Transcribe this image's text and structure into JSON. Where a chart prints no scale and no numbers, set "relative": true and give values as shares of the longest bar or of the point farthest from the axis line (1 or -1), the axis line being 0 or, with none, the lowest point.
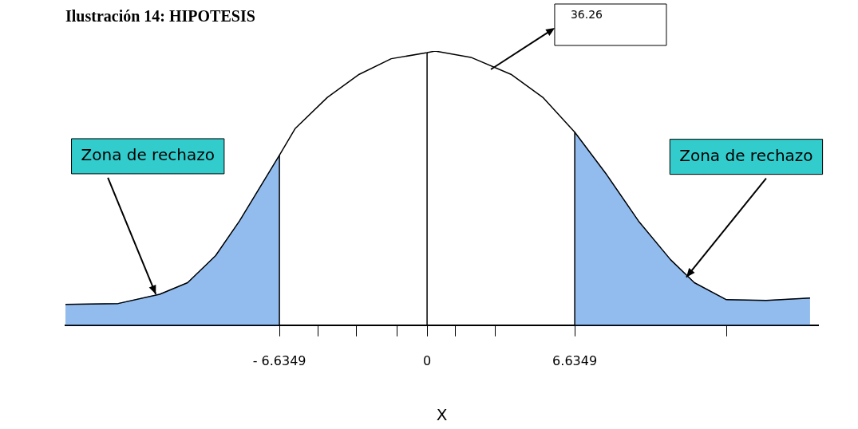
{
  "chart_data": {
    "type": "line",
    "title": "Ilustración 14: HIPOTESIS",
    "xlabel": "X",
    "relative": true,
    "xlim": [
      -16.25,
      17.57
    ],
    "xticks": [
      {
        "value": -6.6349,
        "label": "- 6.6349"
      },
      {
        "value": -4.91,
        "label": null
      },
      {
        "value": -3.19,
        "label": null
      },
      {
        "value": -1.36,
        "label": null
      },
      0,
      {
        "value": 1.26,
        "label": null
      },
      {
        "value": 3.05,
        "label": null
      },
      {
        "value": 6.6349,
        "label": "6.6349"
      },
      {
        "value": 13.45,
        "label": null
      }
    ],
    "series": [
      {
        "color": "#000000",
        "x": [
          -16.25,
          -13.88,
          -12.01,
          -10.76,
          -9.5,
          -8.43,
          -6.6349,
          -5.92,
          -4.48,
          -3.05,
          -1.61,
          0,
          0.36,
          1.97,
          3.77,
          5.2,
          6.6349,
          8.07,
          9.5,
          10.94,
          12.01,
          13.45,
          15.24,
          17.21
        ],
        "values": [
          0.076,
          0.079,
          0.113,
          0.155,
          0.254,
          0.38,
          0.62,
          0.718,
          0.831,
          0.915,
          0.972,
          0.994,
          1,
          0.977,
          0.915,
          0.831,
          0.704,
          0.549,
          0.38,
          0.239,
          0.155,
          0.093,
          0.09,
          0.099
        ]
      },
      {
        "type": "area",
        "color": "#4a90e2",
        "x": [
          -16.25,
          -13.88,
          -12.01,
          -10.76,
          -9.5,
          -8.43,
          -6.6349
        ],
        "values": [
          0.076,
          0.079,
          0.113,
          0.155,
          0.254,
          0.38,
          0.62
        ]
      },
      {
        "type": "area",
        "color": "#4a90e2",
        "x": [
          6.6349,
          8.07,
          9.5,
          10.94,
          12.01,
          13.45,
          15.24,
          17.21
        ],
        "values": [
          0.704,
          0.549,
          0.38,
          0.239,
          0.155,
          0.093,
          0.09,
          0.099
        ]
      }
    ],
    "ref_lines": [
      {
        "axis": "x",
        "value": -6.6349
      },
      {
        "axis": "x",
        "value": 0
      },
      {
        "axis": "x",
        "value": 6.6349
      }
    ],
    "annotations": [
      {
        "text": "Zona de rechazo",
        "x": -12.19,
        "y": 0.113
      },
      {
        "text": "Zona de rechazo",
        "x": 11.65,
        "y": 0.175
      },
      "36.26"
    ],
    "grid": false,
    "legend": false,
    "marker": "none"
  }
}
